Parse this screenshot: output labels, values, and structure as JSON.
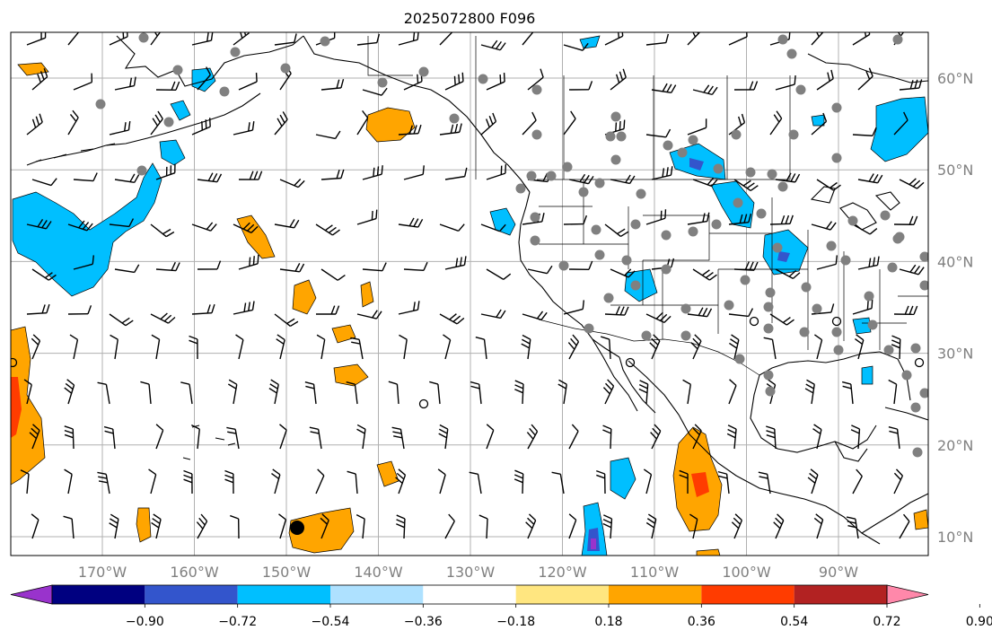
{
  "title": "2025072800 F096",
  "map": {
    "lon_ticks": [
      {
        "label": "170°W",
        "lon": -170
      },
      {
        "label": "160°W",
        "lon": -160
      },
      {
        "label": "150°W",
        "lon": -150
      },
      {
        "label": "140°W",
        "lon": -140
      },
      {
        "label": "130°W",
        "lon": -130
      },
      {
        "label": "120°W",
        "lon": -120
      },
      {
        "label": "110°W",
        "lon": -110
      },
      {
        "label": "100°W",
        "lon": -100
      },
      {
        "label": "90°W",
        "lon": -90
      }
    ],
    "lat_ticks": [
      {
        "label": "60°N",
        "lat": 60
      },
      {
        "label": "50°N",
        "lat": 50
      },
      {
        "label": "40°N",
        "lat": 40
      },
      {
        "label": "30°N",
        "lat": 30
      },
      {
        "label": "20°N",
        "lat": 20
      },
      {
        "label": "10°N",
        "lat": 10
      }
    ],
    "extent": {
      "lon_min": -180,
      "lon_max": -80,
      "lat_min": 8,
      "lat_max": 65
    },
    "colors": {
      "grid": "#b0b0b0",
      "land": "#000000",
      "station": "#808080"
    }
  },
  "colorbar": {
    "labels": [
      "−0.90",
      "−0.72",
      "−0.54",
      "−0.36",
      "−0.18",
      "0.18",
      "0.36",
      "0.54",
      "0.72",
      "0.90"
    ],
    "colors": [
      "#9933cc",
      "#000080",
      "#3355cc",
      "#00bfff",
      "#aee1ff",
      "#ffffff",
      "#ffe680",
      "#ffa500",
      "#ff3c00",
      "#b22222",
      "#ff88aa"
    ]
  }
}
